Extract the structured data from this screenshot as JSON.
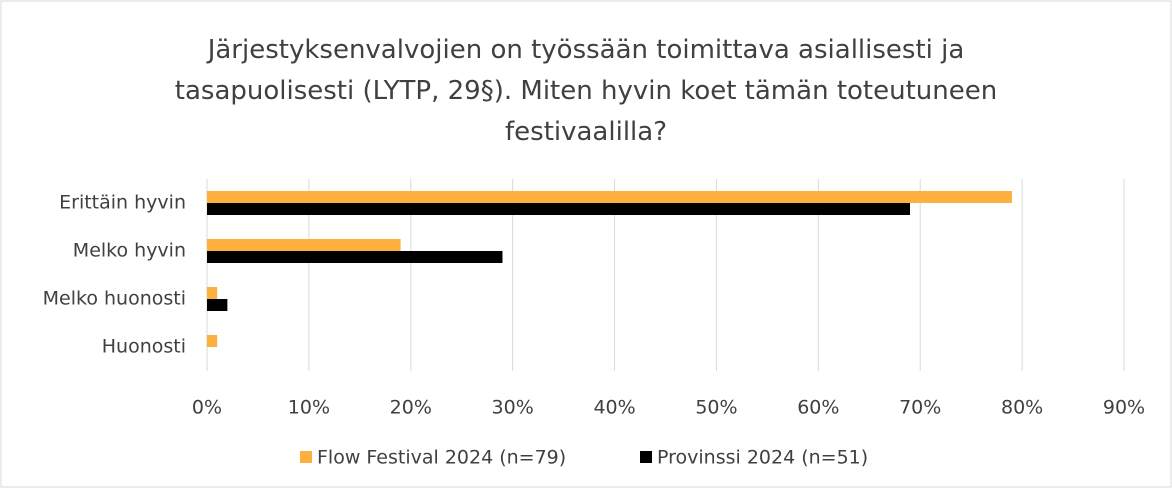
{
  "chart_data": {
    "type": "hbar",
    "title": "Järjestyksenvalvojien on työssään toimittava asiallisesti ja tasapuolisesti (LYTP, 29§). Miten hyvin koet tämän toteutuneen festivaalilla?",
    "categories": [
      "Erittäin hyvin",
      "Melko hyvin",
      "Melko huonosti",
      "Huonosti"
    ],
    "series": [
      {
        "name": "Flow Festival 2024 (n=79)",
        "color": "#fbb040",
        "values": [
          79,
          19,
          1,
          1
        ]
      },
      {
        "name": "Provinssi 2024 (n=51)",
        "color": "#000000",
        "values": [
          69,
          29,
          2,
          0
        ]
      }
    ],
    "xlim": [
      0,
      90
    ],
    "xticks": [
      {
        "value": 0,
        "label": "0%"
      },
      {
        "value": 10,
        "label": "10%"
      },
      {
        "value": 20,
        "label": "20%"
      },
      {
        "value": 30,
        "label": "30%"
      },
      {
        "value": 40,
        "label": "40%"
      },
      {
        "value": 50,
        "label": "50%"
      },
      {
        "value": 60,
        "label": "60%"
      },
      {
        "value": 70,
        "label": "70%"
      },
      {
        "value": 80,
        "label": "80%"
      },
      {
        "value": 90,
        "label": "90%"
      }
    ],
    "grid": true,
    "legend": "bottom"
  }
}
